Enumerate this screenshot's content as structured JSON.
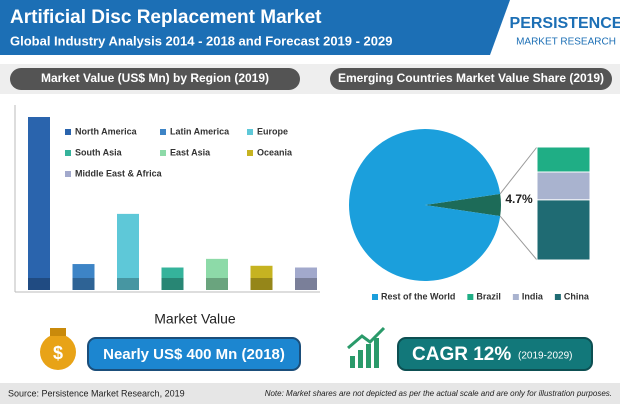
{
  "header": {
    "title": "Artificial Disc Replacement Market",
    "subtitle": "Global Industry Analysis 2014 - 2018 and Forecast 2019 - 2029",
    "logo_top": "PERSISTENCE",
    "logo_bottom": "MARKET RESEARCH"
  },
  "chart_data": [
    {
      "type": "bar",
      "title": "Market Value (US$ Mn) by Region (2019)",
      "x_label": "Market Value",
      "categories": [
        "North America",
        "Latin America",
        "Europe",
        "South Asia",
        "East Asia",
        "Oceania",
        "Middle East & Africa"
      ],
      "values": [
        100,
        15,
        44,
        13,
        18,
        14,
        13
      ],
      "colors": [
        "#2a64ad",
        "#3d84c6",
        "#5ec8d8",
        "#35b39b",
        "#8ddaa8",
        "#c6b321",
        "#a2a9cc"
      ],
      "ylim": [
        0,
        100
      ]
    },
    {
      "type": "pie",
      "title": "Emerging Countries Market Value Share (2019)",
      "categories": [
        "Rest of the World",
        null
      ],
      "values": [
        95.3,
        4.7
      ],
      "value_labels": [
        null,
        "4.7%"
      ],
      "colors": [
        "#1b9fdc",
        "#1d6b58"
      ],
      "breakdown_series": [
        {
          "name": "Brazil",
          "color": "#1fae85",
          "values": [
            1.04
          ]
        },
        {
          "name": "India",
          "color": "#a9b3cf",
          "values": [
            1.16
          ]
        },
        {
          "name": "China",
          "color": "#1f6b73",
          "values": [
            2.5
          ]
        }
      ]
    }
  ],
  "highlights": {
    "market_value": "Nearly US$ 400 Mn (2018)",
    "cagr": "CAGR 12%",
    "cagr_period": "(2019-2029)"
  },
  "footer": {
    "source": "Source: Persistence Market Research, 2019",
    "note": "Note: Market shares are not depicted as per the actual scale and are only for illustration purposes."
  }
}
